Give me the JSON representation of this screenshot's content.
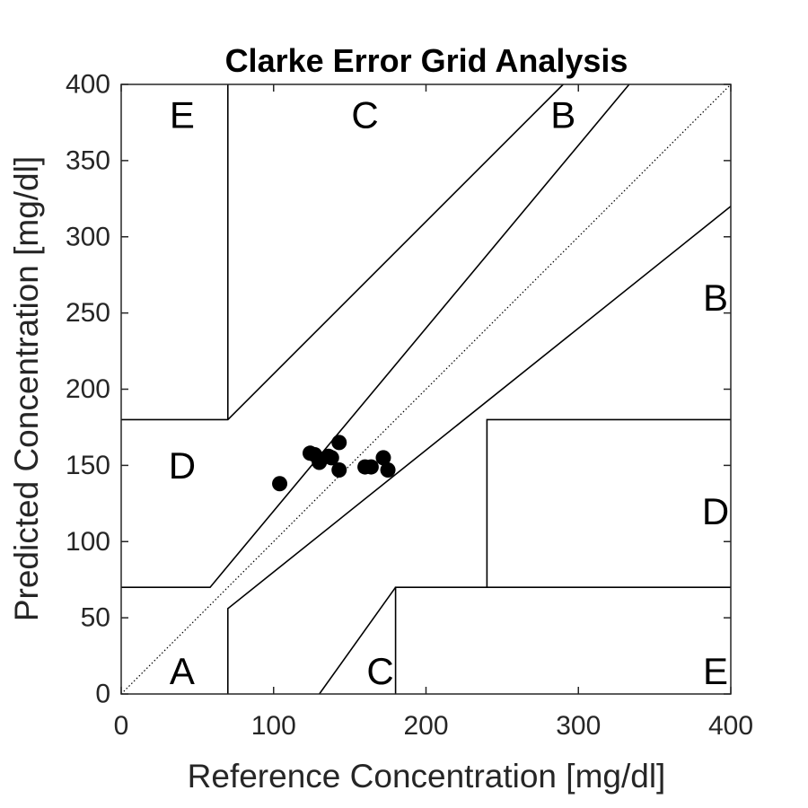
{
  "chart_data": {
    "type": "scatter",
    "title": "Clarke Error Grid Analysis",
    "xlabel": "Reference Concentration [mg/dl]",
    "ylabel": "Predicted Concentration [mg/dl]",
    "xlim": [
      0,
      400
    ],
    "ylim": [
      0,
      400
    ],
    "x_ticks": [
      0,
      100,
      200,
      300,
      400
    ],
    "y_ticks": [
      0,
      50,
      100,
      150,
      200,
      250,
      300,
      350,
      400
    ],
    "grid": false,
    "legend": "none",
    "identity_line": {
      "from": [
        0,
        0
      ],
      "to": [
        400,
        400
      ],
      "style": "dotted"
    },
    "zone_boundaries": [
      {
        "points": [
          [
            70,
            400
          ],
          [
            70,
            180
          ]
        ]
      },
      {
        "points": [
          [
            0,
            180
          ],
          [
            70,
            180
          ],
          [
            290,
            400
          ]
        ]
      },
      {
        "points": [
          [
            0,
            70
          ],
          [
            58.33,
            70
          ],
          [
            70,
            84
          ],
          [
            333.33,
            400
          ]
        ]
      },
      {
        "points": [
          [
            70,
            0
          ],
          [
            70,
            56
          ],
          [
            400,
            320
          ]
        ]
      },
      {
        "points": [
          [
            130,
            0
          ],
          [
            180,
            70
          ]
        ]
      },
      {
        "points": [
          [
            180,
            0
          ],
          [
            180,
            70
          ],
          [
            400,
            70
          ]
        ]
      },
      {
        "points": [
          [
            240,
            70
          ],
          [
            240,
            180
          ],
          [
            400,
            180
          ]
        ]
      }
    ],
    "zone_labels": [
      {
        "text": "E",
        "x": 40,
        "y": 380
      },
      {
        "text": "C",
        "x": 160,
        "y": 380
      },
      {
        "text": "B",
        "x": 290,
        "y": 380
      },
      {
        "text": "B",
        "x": 390,
        "y": 260
      },
      {
        "text": "D",
        "x": 40,
        "y": 150
      },
      {
        "text": "D",
        "x": 390,
        "y": 120
      },
      {
        "text": "A",
        "x": 40,
        "y": 15
      },
      {
        "text": "C",
        "x": 170,
        "y": 15
      },
      {
        "text": "E",
        "x": 390,
        "y": 15
      }
    ],
    "series": [
      {
        "x": [
          104,
          124,
          127,
          130,
          131,
          136,
          138,
          143,
          143,
          160,
          164,
          172,
          175
        ],
        "y": [
          138,
          158,
          157,
          152,
          154,
          156,
          155,
          165,
          147,
          149,
          149,
          155,
          147
        ]
      }
    ]
  }
}
